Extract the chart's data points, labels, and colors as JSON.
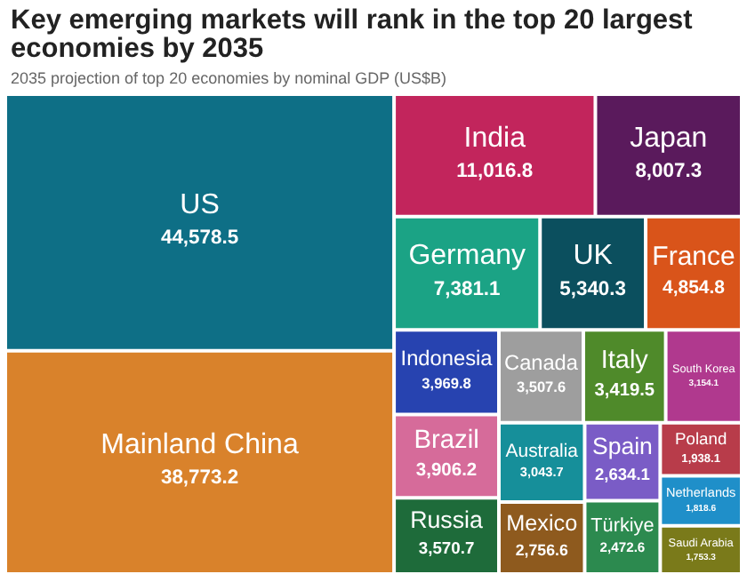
{
  "chart_data": {
    "type": "other",
    "title": "Key emerging markets will rank in the top 20 largest economies by 2035",
    "subtitle": "2035 projection of top 20 economies by nominal GDP (US$B)",
    "categories": [
      "US",
      "Mainland China",
      "India",
      "Japan",
      "Germany",
      "UK",
      "France",
      "Indonesia",
      "Brazil",
      "Russia",
      "Canada",
      "Italy",
      "South Korea",
      "Australia",
      "Mexico",
      "Spain",
      "Türkiye",
      "Poland",
      "Netherlands",
      "Saudi Arabia"
    ],
    "values": [
      44578.5,
      38773.2,
      11016.8,
      8007.3,
      7381.1,
      5340.3,
      4854.8,
      3969.8,
      3906.2,
      3570.7,
      3507.6,
      3419.5,
      3154.1,
      3043.7,
      2756.6,
      2634.1,
      2472.6,
      1938.1,
      1818.6,
      1753.3
    ],
    "colors": [
      "#0e6f86",
      "#d9822b",
      "#c2255c",
      "#5a1a5c",
      "#1ba385",
      "#0b4f5e",
      "#d9541a",
      "#2743b0",
      "#d66b9a",
      "#1e6b3a",
      "#9e9e9e",
      "#4f8a2a",
      "#b0398e",
      "#168f9a",
      "#8e5a1e",
      "#7a5cc6",
      "#2c8a4f",
      "#b83c4a",
      "#1f8fc9",
      "#7a7a1a"
    ],
    "value_labels": [
      "44,578.5",
      "38,773.2",
      "11,016.8",
      "8,007.3",
      "7,381.1",
      "5,340.3",
      "4,854.8",
      "3,969.8",
      "3,906.2",
      "3,570.7",
      "3,507.6",
      "3,419.5",
      "3,154.1",
      "3,043.7",
      "2,756.6",
      "2,634.1",
      "2,472.6",
      "1,938.1",
      "1,818.6",
      "1,753.3"
    ]
  }
}
